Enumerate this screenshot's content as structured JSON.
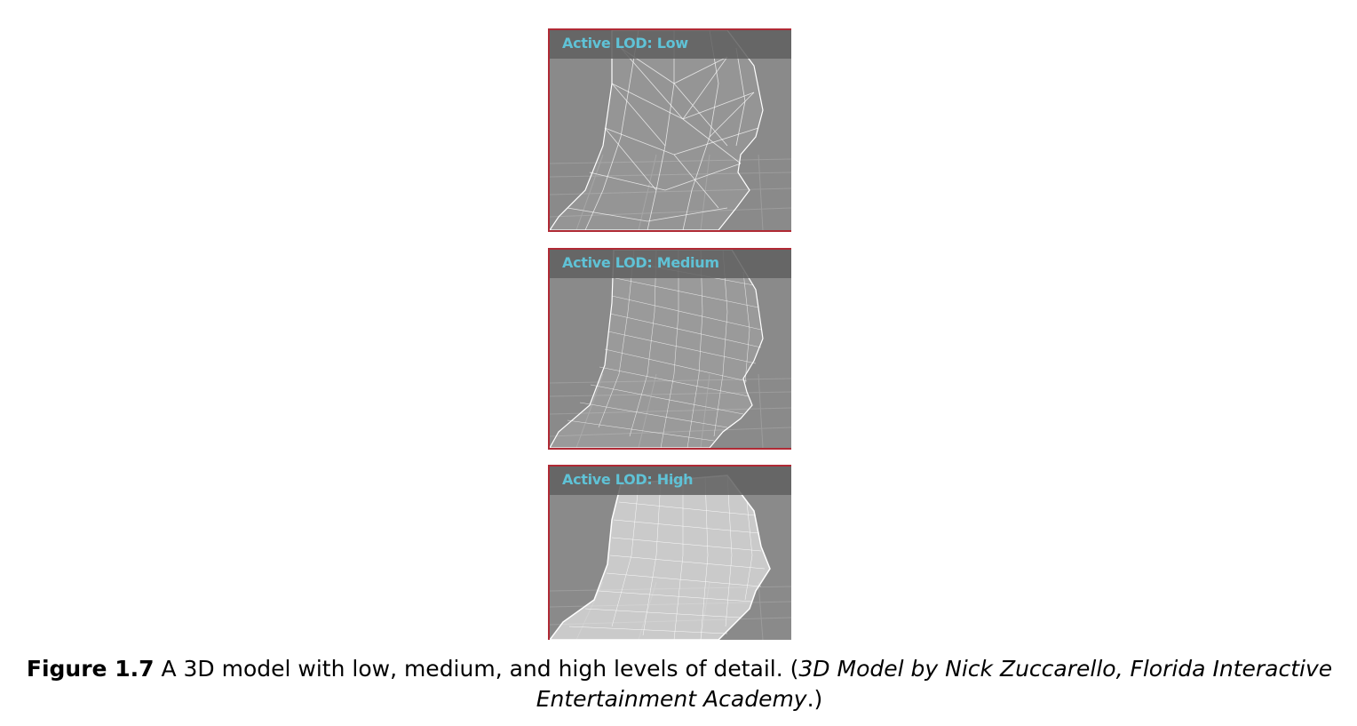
{
  "panels": [
    {
      "label": "Active LOD: Low",
      "detail": "low"
    },
    {
      "label": "Active LOD: Medium",
      "detail": "medium"
    },
    {
      "label": "Active LOD: High",
      "detail": "high"
    }
  ],
  "caption": {
    "figure_label": "Figure 1.7",
    "text": " A 3D model with low, medium, and high levels of detail. (",
    "credit": "3D Model by Nick Zuccarello, Florida Interactive Entertainment Academy",
    "end": ".)"
  },
  "colors": {
    "panel_border": "#b02a35",
    "label_text": "#5fc2d6",
    "viewport_bg": "#8a8a8a",
    "wireframe": "#ffffff"
  }
}
